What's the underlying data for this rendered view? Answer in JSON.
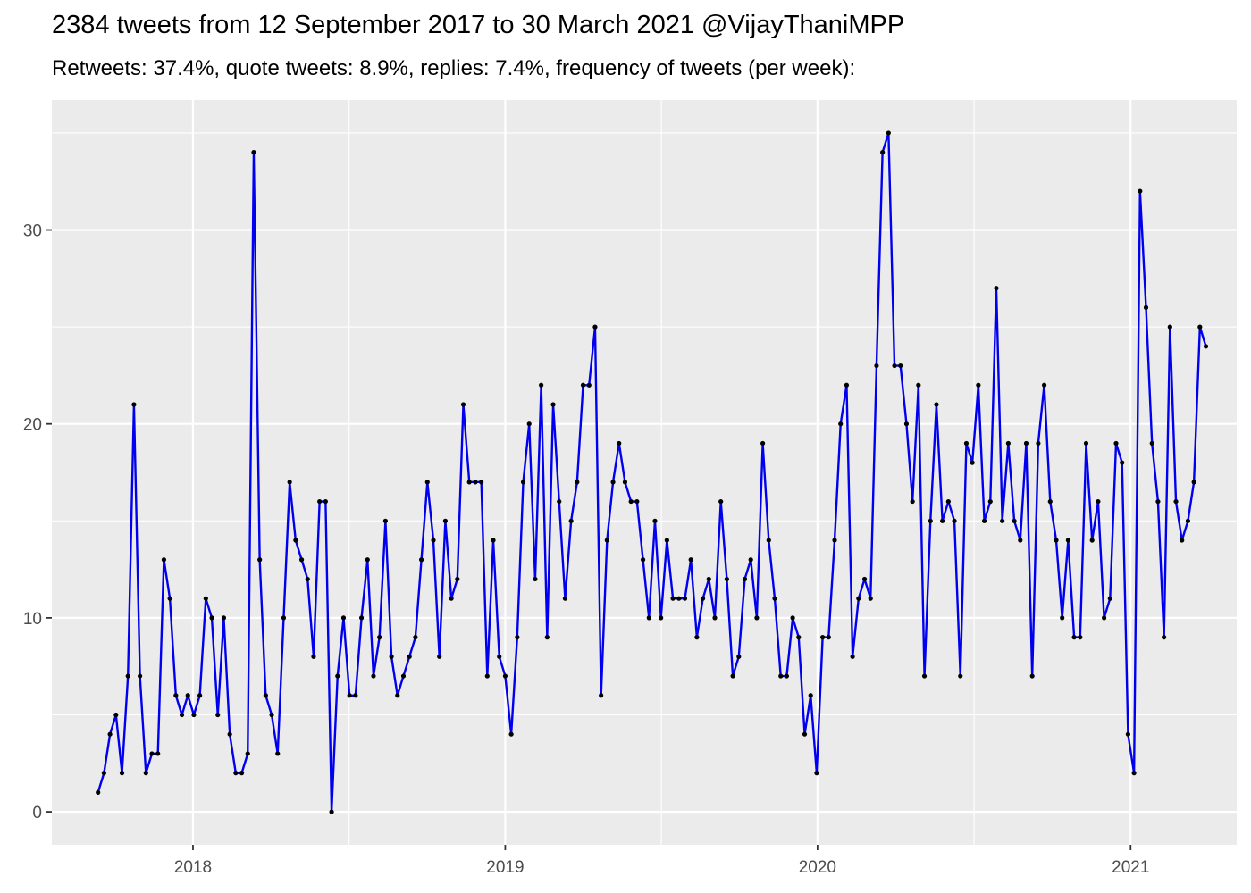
{
  "title": "2384 tweets from 12 September 2017 to 30 March 2021 @VijayThaniMPP",
  "subtitle": "Retweets: 37.4%, quote tweets: 8.9%, replies: 7.4%, frequency of tweets (per week):",
  "colors": {
    "panel_background": "#ebebeb",
    "grid": "#ffffff",
    "line": "#0000ee",
    "point": "#000000"
  },
  "chart_data": {
    "type": "line",
    "title": "2384 tweets from 12 September 2017 to 30 March 2021 @VijayThaniMPP",
    "subtitle": "Retweets: 37.4%, quote tweets: 8.9%, replies: 7.4%, frequency of tweets (per week):",
    "xlabel": "",
    "ylabel": "",
    "x_axis": {
      "type": "date",
      "range": [
        "2017-07-20",
        "2021-05-05"
      ],
      "ticks": [
        "2018-01-01",
        "2019-01-01",
        "2020-01-01",
        "2021-01-01"
      ],
      "tick_labels": [
        "2018",
        "2019",
        "2020",
        "2021"
      ]
    },
    "y_axis": {
      "range": [
        -1.7,
        36.7
      ],
      "ticks": [
        0,
        10,
        20,
        30
      ],
      "tick_labels": [
        "0",
        "10",
        "20",
        "30"
      ]
    },
    "grid": true,
    "legend": "none",
    "series": [
      {
        "x": [
          "2017-09-12",
          "2017-09-19",
          "2017-09-26",
          "2017-10-03",
          "2017-10-10",
          "2017-10-17",
          "2017-10-24",
          "2017-10-31",
          "2017-11-07",
          "2017-11-14",
          "2017-11-21",
          "2017-11-28",
          "2017-12-05",
          "2017-12-12",
          "2017-12-19",
          "2017-12-26",
          "2018-01-02",
          "2018-01-09",
          "2018-01-16",
          "2018-01-23",
          "2018-01-30",
          "2018-02-06",
          "2018-02-13",
          "2018-02-20",
          "2018-02-27",
          "2018-03-06",
          "2018-03-13",
          "2018-03-20",
          "2018-03-27",
          "2018-04-03",
          "2018-04-10",
          "2018-04-17",
          "2018-04-24",
          "2018-05-01",
          "2018-05-08",
          "2018-05-15",
          "2018-05-22",
          "2018-05-29",
          "2018-06-05",
          "2018-06-12",
          "2018-06-19",
          "2018-06-26",
          "2018-07-03",
          "2018-07-10",
          "2018-07-17",
          "2018-07-24",
          "2018-07-31",
          "2018-08-07",
          "2018-08-14",
          "2018-08-21",
          "2018-08-28",
          "2018-09-04",
          "2018-09-11",
          "2018-09-18",
          "2018-09-25",
          "2018-10-02",
          "2018-10-09",
          "2018-10-16",
          "2018-10-23",
          "2018-10-30",
          "2018-11-06",
          "2018-11-13",
          "2018-11-20",
          "2018-11-27",
          "2018-12-04",
          "2018-12-11",
          "2018-12-18",
          "2018-12-25",
          "2019-01-01",
          "2019-01-08",
          "2019-01-15",
          "2019-01-22",
          "2019-01-29",
          "2019-02-05",
          "2019-02-12",
          "2019-02-19",
          "2019-02-26",
          "2019-03-05",
          "2019-03-12",
          "2019-03-19",
          "2019-03-26",
          "2019-04-02",
          "2019-04-09",
          "2019-04-16",
          "2019-04-23",
          "2019-04-30",
          "2019-05-07",
          "2019-05-14",
          "2019-05-21",
          "2019-05-28",
          "2019-06-04",
          "2019-06-11",
          "2019-06-18",
          "2019-06-25",
          "2019-07-02",
          "2019-07-09",
          "2019-07-16",
          "2019-07-23",
          "2019-07-30",
          "2019-08-06",
          "2019-08-13",
          "2019-08-20",
          "2019-08-27",
          "2019-09-03",
          "2019-09-10",
          "2019-09-17",
          "2019-09-24",
          "2019-10-01",
          "2019-10-08",
          "2019-10-15",
          "2019-10-22",
          "2019-10-29",
          "2019-11-05",
          "2019-11-12",
          "2019-11-19",
          "2019-11-26",
          "2019-12-03",
          "2019-12-10",
          "2019-12-17",
          "2019-12-24",
          "2019-12-31",
          "2020-01-07",
          "2020-01-14",
          "2020-01-21",
          "2020-01-28",
          "2020-02-04",
          "2020-02-11",
          "2020-02-18",
          "2020-02-25",
          "2020-03-03",
          "2020-03-10",
          "2020-03-17",
          "2020-03-24",
          "2020-03-31",
          "2020-04-07",
          "2020-04-14",
          "2020-04-21",
          "2020-04-28",
          "2020-05-05",
          "2020-05-12",
          "2020-05-19",
          "2020-05-26",
          "2020-06-02",
          "2020-06-09",
          "2020-06-16",
          "2020-06-23",
          "2020-06-30",
          "2020-07-07",
          "2020-07-14",
          "2020-07-21",
          "2020-07-28",
          "2020-08-04",
          "2020-08-11",
          "2020-08-18",
          "2020-08-25",
          "2020-09-01",
          "2020-09-08",
          "2020-09-15",
          "2020-09-22",
          "2020-09-29",
          "2020-10-06",
          "2020-10-13",
          "2020-10-20",
          "2020-10-27",
          "2020-11-03",
          "2020-11-10",
          "2020-11-17",
          "2020-11-24",
          "2020-12-01",
          "2020-12-08",
          "2020-12-15",
          "2020-12-22",
          "2020-12-29",
          "2021-01-05",
          "2021-01-12",
          "2021-01-19",
          "2021-01-26",
          "2021-02-02",
          "2021-02-09",
          "2021-02-16",
          "2021-02-23",
          "2021-03-02",
          "2021-03-09",
          "2021-03-16",
          "2021-03-23",
          "2021-03-30"
        ],
        "values": [
          1,
          2,
          4,
          5,
          2,
          7,
          21,
          7,
          2,
          3,
          3,
          13,
          11,
          6,
          5,
          6,
          5,
          6,
          11,
          10,
          5,
          10,
          4,
          2,
          2,
          3,
          34,
          13,
          6,
          5,
          3,
          10,
          17,
          14,
          13,
          12,
          8,
          16,
          16,
          0,
          7,
          10,
          6,
          6,
          10,
          13,
          7,
          9,
          15,
          8,
          6,
          7,
          8,
          9,
          13,
          17,
          14,
          8,
          15,
          11,
          12,
          21,
          17,
          17,
          17,
          7,
          14,
          8,
          7,
          4,
          9,
          17,
          20,
          12,
          22,
          9,
          21,
          16,
          11,
          15,
          17,
          22,
          22,
          25,
          6,
          14,
          17,
          19,
          17,
          16,
          16,
          13,
          10,
          15,
          10,
          14,
          11,
          11,
          11,
          13,
          9,
          11,
          12,
          10,
          16,
          12,
          7,
          8,
          12,
          13,
          10,
          19,
          14,
          11,
          7,
          7,
          10,
          9,
          4,
          6,
          2,
          9,
          9,
          14,
          20,
          22,
          8,
          11,
          12,
          11,
          23,
          34,
          35,
          23,
          23,
          20,
          16,
          22,
          7,
          15,
          21,
          15,
          16,
          15,
          7,
          19,
          18,
          22,
          15,
          16,
          27,
          15,
          19,
          15,
          14,
          19,
          7,
          19,
          22,
          16,
          14,
          10,
          14,
          9,
          9,
          19,
          14,
          16,
          10,
          11,
          19,
          18,
          4,
          2,
          32,
          26,
          19,
          16,
          9,
          25,
          16,
          14,
          15,
          17,
          25,
          24
        ]
      }
    ]
  }
}
